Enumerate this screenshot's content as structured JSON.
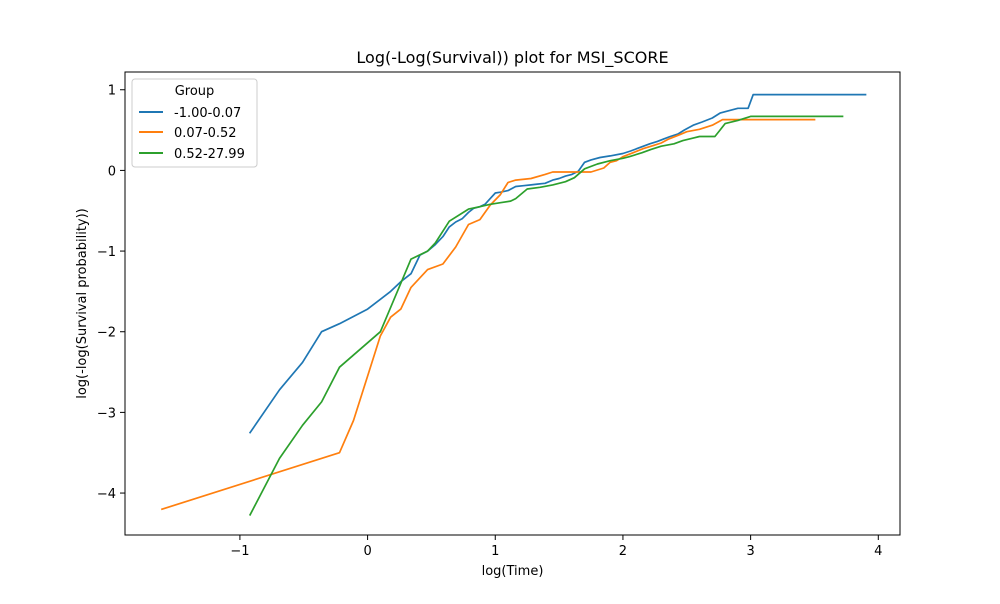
{
  "chart_data": {
    "type": "line",
    "title": "Log(-Log(Survival)) plot for MSI_SCORE",
    "xlabel": "log(Time)",
    "ylabel": "log(-log(Survival probability))",
    "xlim": [
      -1.9,
      4.17
    ],
    "ylim": [
      -4.52,
      1.22
    ],
    "xticks": [
      -1,
      0,
      1,
      2,
      3,
      4
    ],
    "yticks": [
      -4,
      -3,
      -2,
      -1,
      0,
      1
    ],
    "xtick_labels": [
      "−1",
      "0",
      "1",
      "2",
      "3",
      "4"
    ],
    "ytick_labels": [
      "−4",
      "−3",
      "−2",
      "−1",
      "0",
      "1"
    ],
    "grid": false,
    "legend": {
      "title": "Group",
      "placement": "top-left"
    },
    "series": [
      {
        "name": "-1.00-0.07",
        "color": "#1f77b4",
        "points": [
          [
            -0.92,
            -3.25
          ],
          [
            -0.69,
            -2.72
          ],
          [
            -0.51,
            -2.38
          ],
          [
            -0.36,
            -2.0
          ],
          [
            -0.22,
            -1.9
          ],
          [
            0.0,
            -1.72
          ],
          [
            0.18,
            -1.5
          ],
          [
            0.26,
            -1.38
          ],
          [
            0.34,
            -1.28
          ],
          [
            0.41,
            -1.05
          ],
          [
            0.47,
            -1.0
          ],
          [
            0.53,
            -0.92
          ],
          [
            0.59,
            -0.82
          ],
          [
            0.64,
            -0.7
          ],
          [
            0.69,
            -0.64
          ],
          [
            0.74,
            -0.6
          ],
          [
            0.79,
            -0.52
          ],
          [
            0.83,
            -0.47
          ],
          [
            0.88,
            -0.45
          ],
          [
            0.92,
            -0.42
          ],
          [
            0.96,
            -0.35
          ],
          [
            1.0,
            -0.28
          ],
          [
            1.04,
            -0.27
          ],
          [
            1.1,
            -0.25
          ],
          [
            1.16,
            -0.2
          ],
          [
            1.22,
            -0.19
          ],
          [
            1.28,
            -0.18
          ],
          [
            1.33,
            -0.17
          ],
          [
            1.39,
            -0.16
          ],
          [
            1.45,
            -0.12
          ],
          [
            1.5,
            -0.1
          ],
          [
            1.55,
            -0.07
          ],
          [
            1.6,
            -0.05
          ],
          [
            1.65,
            -0.01
          ],
          [
            1.7,
            0.1
          ],
          [
            1.75,
            0.13
          ],
          [
            1.82,
            0.16
          ],
          [
            1.9,
            0.18
          ],
          [
            2.0,
            0.21
          ],
          [
            2.06,
            0.24
          ],
          [
            2.11,
            0.27
          ],
          [
            2.16,
            0.3
          ],
          [
            2.21,
            0.33
          ],
          [
            2.27,
            0.36
          ],
          [
            2.32,
            0.39
          ],
          [
            2.37,
            0.42
          ],
          [
            2.43,
            0.45
          ],
          [
            2.48,
            0.5
          ],
          [
            2.55,
            0.56
          ],
          [
            2.62,
            0.6
          ],
          [
            2.7,
            0.65
          ],
          [
            2.76,
            0.71
          ],
          [
            2.83,
            0.74
          ],
          [
            2.9,
            0.77
          ],
          [
            2.98,
            0.77
          ],
          [
            3.02,
            0.94
          ],
          [
            3.9,
            0.94
          ]
        ]
      },
      {
        "name": "0.07-0.52",
        "color": "#ff7f0e",
        "points": [
          [
            -1.61,
            -4.2
          ],
          [
            -0.22,
            -3.5
          ],
          [
            -0.11,
            -3.1
          ],
          [
            0.0,
            -2.55
          ],
          [
            0.1,
            -2.05
          ],
          [
            0.18,
            -1.82
          ],
          [
            0.26,
            -1.72
          ],
          [
            0.34,
            -1.45
          ],
          [
            0.47,
            -1.23
          ],
          [
            0.59,
            -1.16
          ],
          [
            0.69,
            -0.95
          ],
          [
            0.79,
            -0.67
          ],
          [
            0.88,
            -0.61
          ],
          [
            0.96,
            -0.43
          ],
          [
            1.04,
            -0.3
          ],
          [
            1.1,
            -0.15
          ],
          [
            1.16,
            -0.12
          ],
          [
            1.28,
            -0.1
          ],
          [
            1.39,
            -0.05
          ],
          [
            1.45,
            -0.02
          ],
          [
            1.55,
            -0.02
          ],
          [
            1.65,
            -0.02
          ],
          [
            1.75,
            -0.02
          ],
          [
            1.85,
            0.03
          ],
          [
            1.9,
            0.1
          ],
          [
            1.95,
            0.12
          ],
          [
            2.0,
            0.17
          ],
          [
            2.08,
            0.22
          ],
          [
            2.16,
            0.27
          ],
          [
            2.24,
            0.31
          ],
          [
            2.3,
            0.34
          ],
          [
            2.36,
            0.39
          ],
          [
            2.44,
            0.44
          ],
          [
            2.5,
            0.48
          ],
          [
            2.6,
            0.51
          ],
          [
            2.7,
            0.56
          ],
          [
            2.78,
            0.63
          ],
          [
            2.9,
            0.63
          ],
          [
            3.0,
            0.63
          ],
          [
            3.5,
            0.63
          ]
        ]
      },
      {
        "name": "0.52-27.99",
        "color": "#2ca02c",
        "points": [
          [
            -0.92,
            -4.27
          ],
          [
            -0.69,
            -3.57
          ],
          [
            -0.51,
            -3.16
          ],
          [
            -0.36,
            -2.87
          ],
          [
            -0.22,
            -2.44
          ],
          [
            0.1,
            -2.0
          ],
          [
            0.26,
            -1.4
          ],
          [
            0.34,
            -1.1
          ],
          [
            0.47,
            -1.0
          ],
          [
            0.53,
            -0.9
          ],
          [
            0.64,
            -0.63
          ],
          [
            0.79,
            -0.48
          ],
          [
            0.88,
            -0.45
          ],
          [
            0.96,
            -0.42
          ],
          [
            1.04,
            -0.4
          ],
          [
            1.12,
            -0.38
          ],
          [
            1.16,
            -0.35
          ],
          [
            1.25,
            -0.23
          ],
          [
            1.35,
            -0.21
          ],
          [
            1.45,
            -0.18
          ],
          [
            1.55,
            -0.14
          ],
          [
            1.62,
            -0.09
          ],
          [
            1.7,
            0.02
          ],
          [
            1.8,
            0.08
          ],
          [
            1.9,
            0.12
          ],
          [
            2.0,
            0.15
          ],
          [
            2.05,
            0.17
          ],
          [
            2.15,
            0.22
          ],
          [
            2.22,
            0.26
          ],
          [
            2.3,
            0.3
          ],
          [
            2.4,
            0.33
          ],
          [
            2.47,
            0.37
          ],
          [
            2.55,
            0.4
          ],
          [
            2.6,
            0.42
          ],
          [
            2.65,
            0.42
          ],
          [
            2.72,
            0.42
          ],
          [
            2.76,
            0.5
          ],
          [
            2.8,
            0.58
          ],
          [
            2.9,
            0.62
          ],
          [
            3.0,
            0.67
          ],
          [
            3.2,
            0.67
          ],
          [
            3.5,
            0.67
          ],
          [
            3.72,
            0.67
          ]
        ]
      }
    ]
  }
}
